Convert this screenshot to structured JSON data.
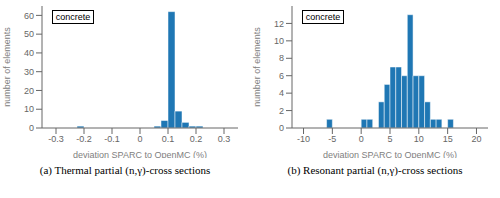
{
  "chart_data": [
    {
      "type": "histogram",
      "title": "concrete",
      "xlabel": "deviation SPARC to OpenMC (%)",
      "ylabel": "number of elements",
      "caption": "(a) Thermal partial (n,γ)-cross sections",
      "bins": [
        -0.225,
        -0.2,
        -0.175,
        0.05,
        0.075,
        0.1,
        0.125,
        0.15,
        0.175,
        0.2,
        0.225
      ],
      "values": [
        1,
        0,
        null,
        1,
        4,
        62,
        9,
        3,
        1,
        1
      ],
      "color": "#1f77b4",
      "xlim": [
        -0.35,
        0.35
      ],
      "ylim": [
        0,
        65
      ],
      "xticks": [
        -0.3,
        -0.2,
        -0.1,
        0.0,
        0.1,
        0.2,
        0.3
      ],
      "yticks": [
        0,
        10,
        20,
        30,
        40,
        50,
        60
      ]
    },
    {
      "type": "histogram",
      "title": "concrete",
      "xlabel": "deviation SPARC to OpenMC (%)",
      "ylabel": "number of elements",
      "caption": "(b) Resonant partial (n,γ)-cross sections",
      "bins": [
        -6,
        -5,
        -4,
        -1,
        0,
        1,
        2,
        3,
        4,
        5,
        6,
        7,
        8,
        9,
        10,
        11,
        12,
        13,
        14,
        15,
        16,
        17
      ],
      "values": [
        1,
        0,
        null,
        0,
        1,
        1,
        0,
        3,
        5,
        7,
        7,
        6,
        13,
        6,
        6,
        3,
        1,
        1,
        0,
        1,
        0
      ],
      "color": "#1f77b4",
      "xlim": [
        -12,
        22
      ],
      "ylim": [
        0,
        14
      ],
      "xticks": [
        -10,
        -5,
        0,
        5,
        10,
        15,
        20
      ],
      "yticks": [
        0,
        2,
        4,
        6,
        8,
        10,
        12
      ]
    }
  ]
}
